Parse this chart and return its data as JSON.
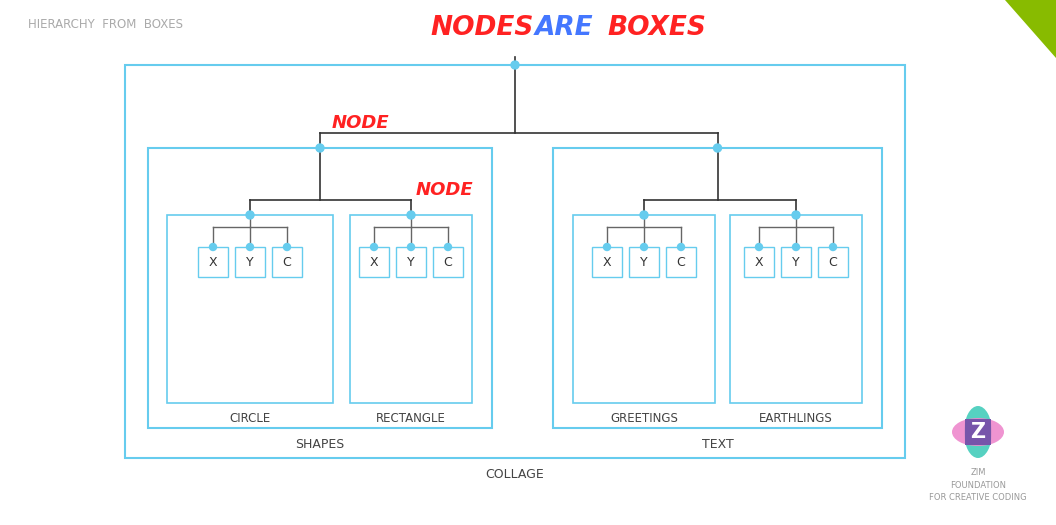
{
  "title_left": "HIERARCHY  FROM  BOXES",
  "bg_color": "#ffffff",
  "box_color": "#66ccee",
  "line_color_tree": "#333333",
  "line_color_gray": "#666666",
  "node_label_color": "#ff2222",
  "label_color": "#444444",
  "collage_label": "COLLAGE",
  "shapes_label": "SHAPES",
  "text_label": "TEXT",
  "circle_label": "CIRCLE",
  "rectangle_label": "RECTANGLE",
  "greetings_label": "GREETINGS",
  "earthlings_label": "EARTHLINGS",
  "node_label": "NODE",
  "zim_text": "ZIM\nFOUNDATION\nFOR CREATIVE CODING",
  "green_corner_color": "#88bb00",
  "zim_teal": "#44ccbb",
  "zim_pink": "#ee88cc",
  "zim_purple": "#7755aa",
  "title_left_color": "#aaaaaa",
  "nodes_color": "#ff2222",
  "are_color": "#4477ff",
  "boxes_color": "#ff2222"
}
